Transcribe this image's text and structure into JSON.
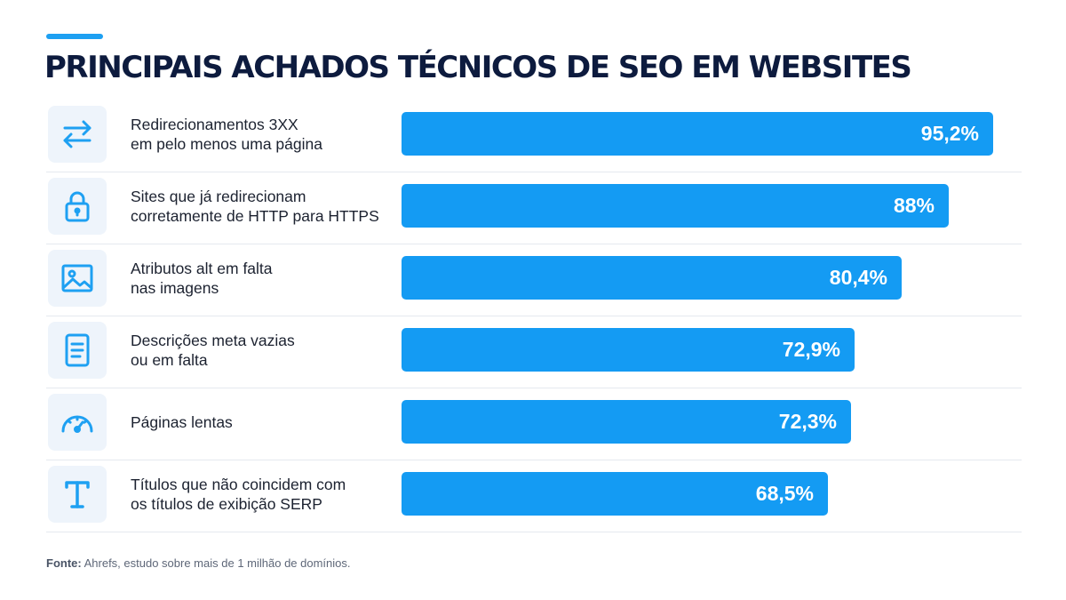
{
  "title": "PRINCIPAIS ACHADOS TÉCNICOS DE SEO EM WEBSITES",
  "colors": {
    "accent": "#1ea0f2",
    "bar": "#149bf3",
    "icon": "#1ea0f2",
    "icon_bg": "#eef4fb",
    "title": "#0d1b3e"
  },
  "footer": {
    "label": "Fonte:",
    "text": " Ahrefs, estudo sobre mais de 1 milhão de domínios."
  },
  "chart_data": {
    "type": "bar",
    "orientation": "horizontal",
    "title": "PRINCIPAIS ACHADOS TÉCNICOS DE SEO EM WEBSITES",
    "xlim": [
      0,
      100
    ],
    "unit": "%",
    "grid": false,
    "legend": "none",
    "categories": [
      "Redirecionamentos 3XX\nem pelo menos uma página",
      "Sites que já redirecionam\ncorretamente de HTTP para HTTPS",
      "Atributos alt em falta\nnas imagens",
      "Descrições meta vazias\nou em falta",
      "Páginas lentas",
      "Títulos que não coincidem com\nos títulos de exibição SERP"
    ],
    "values": [
      95.2,
      88,
      80.4,
      72.9,
      72.3,
      68.5
    ],
    "value_labels": [
      "95,2%",
      "88%",
      "80,4%",
      "72,9%",
      "72,3%",
      "68,5%"
    ],
    "icons": [
      "arrows-exchange-icon",
      "padlock-icon",
      "image-icon",
      "document-icon",
      "speedometer-icon",
      "text-t-icon"
    ]
  }
}
